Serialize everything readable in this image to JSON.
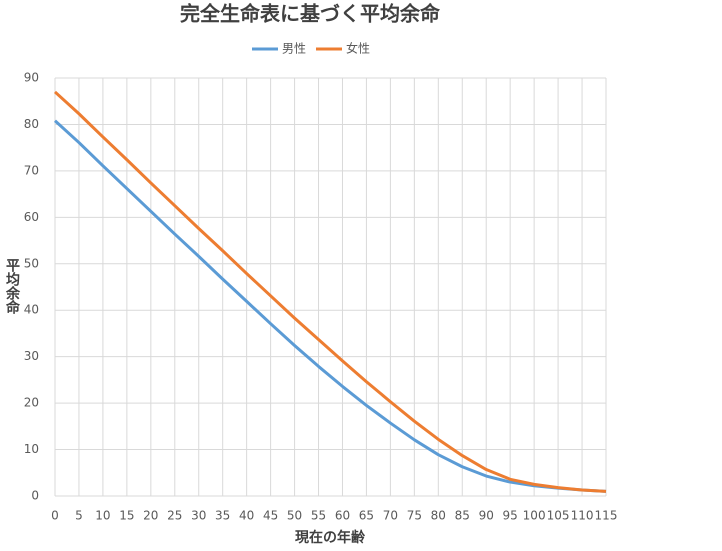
{
  "chart_data": {
    "type": "line",
    "title": "完全生命表に基づく平均余命",
    "x_label": "現在の年齢",
    "y_label": "平均余命",
    "x": [
      0,
      5,
      10,
      15,
      20,
      25,
      30,
      35,
      40,
      45,
      50,
      55,
      60,
      65,
      70,
      75,
      80,
      85,
      90,
      95,
      100,
      105,
      110,
      115
    ],
    "series": [
      {
        "name": "男性",
        "color": "#5b9bd5",
        "values": [
          80.8,
          76.1,
          71.1,
          66.2,
          61.3,
          56.4,
          51.6,
          46.7,
          41.9,
          37.1,
          32.4,
          27.9,
          23.6,
          19.5,
          15.7,
          12.1,
          8.9,
          6.3,
          4.3,
          3.0,
          2.2,
          1.7,
          1.3,
          1.0
        ]
      },
      {
        "name": "女性",
        "color": "#ed7d31",
        "values": [
          87.0,
          82.3,
          77.3,
          72.4,
          67.4,
          62.5,
          57.6,
          52.8,
          47.9,
          43.1,
          38.3,
          33.7,
          29.1,
          24.6,
          20.3,
          16.1,
          12.2,
          8.7,
          5.7,
          3.6,
          2.5,
          1.8,
          1.3,
          1.0
        ]
      }
    ],
    "xlim": [
      0,
      115
    ],
    "xticks": [
      0,
      5,
      10,
      15,
      20,
      25,
      30,
      35,
      40,
      45,
      50,
      55,
      60,
      65,
      70,
      75,
      80,
      85,
      90,
      95,
      100,
      105,
      110,
      115
    ],
    "ylim": [
      0,
      90
    ],
    "yticks": [
      0,
      10,
      20,
      30,
      40,
      50,
      60,
      70,
      80,
      90
    ],
    "grid": true,
    "legend": "top"
  }
}
